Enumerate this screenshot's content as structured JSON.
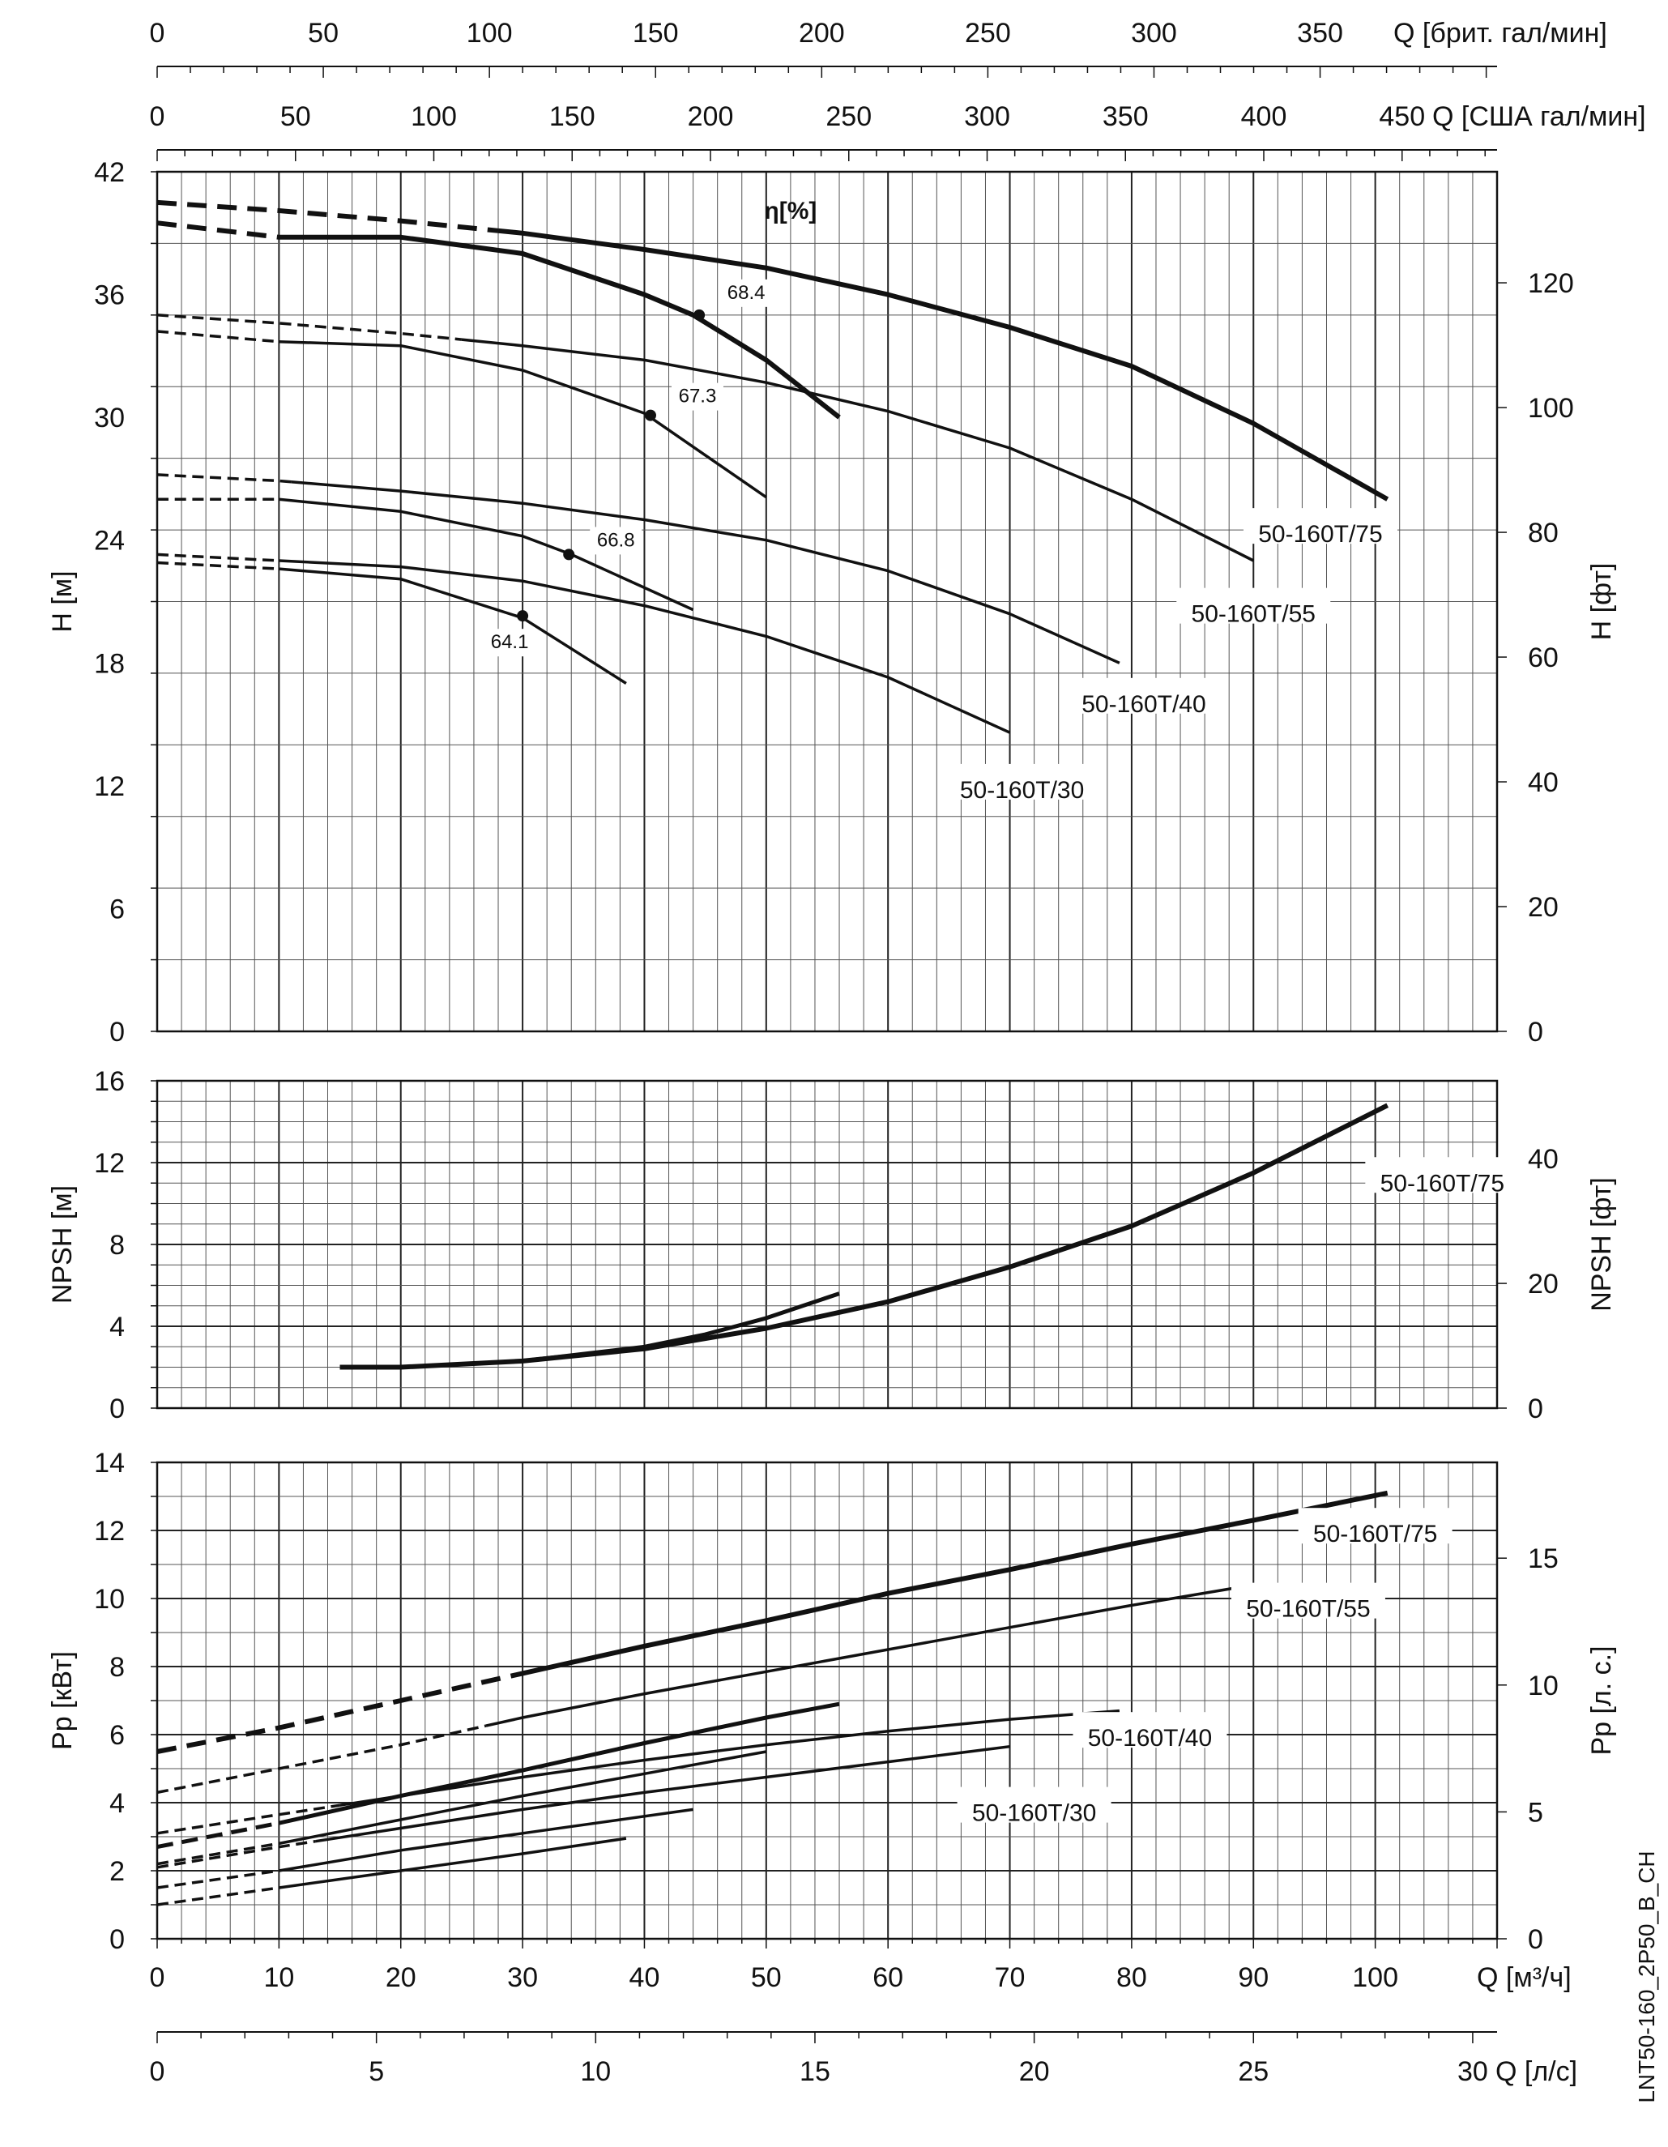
{
  "chart_data": [
    {
      "type": "line",
      "title": "",
      "xlabel": "Q [м³/ч]",
      "ylabel": "H [м]",
      "ylabel_right": "H [фт]",
      "xlim": [
        0,
        110
      ],
      "ylim": [
        0,
        42
      ],
      "grid": true,
      "annotation_title": "η[%]",
      "top_axis_brit": {
        "label": "Q [брит. гал/мин]",
        "ticks": [
          "0",
          "50",
          "100",
          "150",
          "200",
          "250",
          "300",
          "350"
        ]
      },
      "top_axis_usa": {
        "label": "Q [США гал/мин]",
        "ticks": [
          "0",
          "50",
          "100",
          "150",
          "200",
          "250",
          "300",
          "350",
          "400",
          "450"
        ]
      },
      "y_ticks": [
        "0",
        "6",
        "12",
        "18",
        "24",
        "30",
        "36",
        "42"
      ],
      "y_ticks_right": [
        "0",
        "20",
        "40",
        "60",
        "80",
        "100",
        "120"
      ],
      "series": [
        {
          "name": "50-160T/75",
          "x": [
            0,
            10,
            20,
            30,
            40,
            50,
            60,
            70,
            80,
            90,
            101
          ],
          "y": [
            40.5,
            40.1,
            39.6,
            39.0,
            38.2,
            37.3,
            36.0,
            34.4,
            32.5,
            29.7,
            26.0
          ]
        },
        {
          "name": "50-160T/55",
          "x": [
            0,
            10,
            20,
            30,
            40,
            50,
            60,
            70,
            80,
            90
          ],
          "y": [
            35.0,
            34.6,
            34.1,
            33.5,
            32.8,
            31.7,
            30.3,
            28.5,
            26.0,
            23.0
          ]
        },
        {
          "name": "50-160T/40",
          "x": [
            0,
            10,
            20,
            30,
            40,
            50,
            60,
            70,
            79
          ],
          "y": [
            27.2,
            26.9,
            26.4,
            25.8,
            25.0,
            24.0,
            22.5,
            20.4,
            18.0
          ]
        },
        {
          "name": "50-160T/30",
          "x": [
            0,
            10,
            20,
            30,
            40,
            50,
            60,
            70
          ],
          "y": [
            23.3,
            23.0,
            22.7,
            22.0,
            20.8,
            19.3,
            17.3,
            14.6
          ]
        },
        {
          "name": "",
          "x": [
            0,
            10,
            20,
            30,
            40,
            44,
            50,
            56
          ],
          "y": [
            39.5,
            38.8,
            38.8,
            38.0,
            36.0,
            35.0,
            32.8,
            30.0
          ]
        },
        {
          "name": "",
          "x": [
            0,
            10,
            20,
            30,
            40,
            50
          ],
          "y": [
            34.2,
            33.7,
            33.5,
            32.3,
            30.2,
            26.1
          ]
        },
        {
          "name": "",
          "x": [
            0,
            10,
            20,
            30,
            34,
            44
          ],
          "y": [
            26.0,
            26.0,
            25.4,
            24.2,
            23.3,
            20.6
          ]
        },
        {
          "name": "",
          "x": [
            0,
            10,
            20,
            30,
            38.5
          ],
          "y": [
            22.9,
            22.6,
            22.1,
            20.2,
            17.0
          ]
        }
      ],
      "efficiency_points": [
        {
          "label": "68.4",
          "x": 44.5,
          "y": 35.0
        },
        {
          "label": "67.3",
          "x": 40.5,
          "y": 30.1
        },
        {
          "label": "66.8",
          "x": 33.8,
          "y": 23.3
        },
        {
          "label": "64.1",
          "x": 30.0,
          "y": 20.3
        }
      ]
    },
    {
      "type": "line",
      "title": "",
      "xlabel": "",
      "ylabel": "NPSH [м]",
      "ylabel_right": "NPSH [фт]",
      "xlim": [
        0,
        110
      ],
      "ylim": [
        0,
        16
      ],
      "grid": true,
      "y_ticks": [
        "0",
        "4",
        "8",
        "12",
        "16"
      ],
      "y_ticks_right": [
        "0",
        "20",
        "40"
      ],
      "series": [
        {
          "name": "50-160T/75",
          "x": [
            15,
            20,
            30,
            40,
            50,
            60,
            70,
            80,
            90,
            101
          ],
          "y": [
            2.0,
            2.0,
            2.3,
            2.9,
            3.9,
            5.2,
            6.9,
            8.9,
            11.5,
            14.8
          ]
        },
        {
          "name": "",
          "x": [
            15,
            20,
            30,
            40,
            45,
            50,
            56
          ],
          "y": [
            2.0,
            2.0,
            2.3,
            3.0,
            3.6,
            4.4,
            5.6
          ]
        }
      ]
    },
    {
      "type": "line",
      "title": "",
      "xlabel": "Q [м³/ч]",
      "ylabel": "Pp [кВт]",
      "ylabel_right": "Pp [л. с.]",
      "xlim": [
        0,
        110
      ],
      "ylim": [
        0,
        14
      ],
      "grid": true,
      "x_ticks": [
        "0",
        "10",
        "20",
        "30",
        "40",
        "50",
        "60",
        "70",
        "80",
        "90",
        "100"
      ],
      "y_ticks": [
        "0",
        "2",
        "4",
        "6",
        "8",
        "10",
        "12",
        "14"
      ],
      "y_ticks_right": [
        "0",
        "5",
        "10",
        "15"
      ],
      "bottom_axis_ls": {
        "label": "Q [л/с]",
        "ticks": [
          "0",
          "5",
          "10",
          "15",
          "20",
          "25",
          "30"
        ]
      },
      "series": [
        {
          "name": "50-160T/75",
          "x": [
            0,
            10,
            20,
            30,
            40,
            50,
            60,
            70,
            80,
            90,
            101
          ],
          "y": [
            5.5,
            6.2,
            7.0,
            7.8,
            8.6,
            9.35,
            10.15,
            10.85,
            11.6,
            12.3,
            13.1
          ]
        },
        {
          "name": "50-160T/55",
          "x": [
            0,
            10,
            20,
            30,
            40,
            50,
            60,
            70,
            80,
            90
          ],
          "y": [
            4.3,
            5.0,
            5.7,
            6.5,
            7.2,
            7.85,
            8.5,
            9.15,
            9.8,
            10.4
          ]
        },
        {
          "name": "50-160T/40",
          "x": [
            0,
            10,
            20,
            30,
            40,
            50,
            60,
            70,
            79
          ],
          "y": [
            3.1,
            3.65,
            4.2,
            4.75,
            5.25,
            5.7,
            6.1,
            6.45,
            6.7
          ]
        },
        {
          "name": "50-160T/30",
          "x": [
            0,
            10,
            20,
            30,
            40,
            50,
            60,
            70
          ],
          "y": [
            2.1,
            2.7,
            3.25,
            3.8,
            4.3,
            4.75,
            5.2,
            5.65
          ]
        },
        {
          "name": "",
          "x": [
            0,
            10,
            20,
            30,
            40,
            50,
            56
          ],
          "y": [
            2.7,
            3.4,
            4.2,
            4.95,
            5.75,
            6.5,
            6.9
          ]
        },
        {
          "name": "",
          "x": [
            0,
            10,
            20,
            30,
            40,
            50
          ],
          "y": [
            2.2,
            2.8,
            3.5,
            4.2,
            4.85,
            5.5
          ]
        },
        {
          "name": "",
          "x": [
            0,
            10,
            20,
            30,
            44
          ],
          "y": [
            1.5,
            2.0,
            2.6,
            3.1,
            3.8
          ]
        },
        {
          "name": "",
          "x": [
            0,
            10,
            20,
            30,
            38.5
          ],
          "y": [
            1.0,
            1.5,
            2.0,
            2.5,
            2.95
          ]
        }
      ]
    }
  ],
  "side_note": "LNT50-160_2P50_B_CH"
}
